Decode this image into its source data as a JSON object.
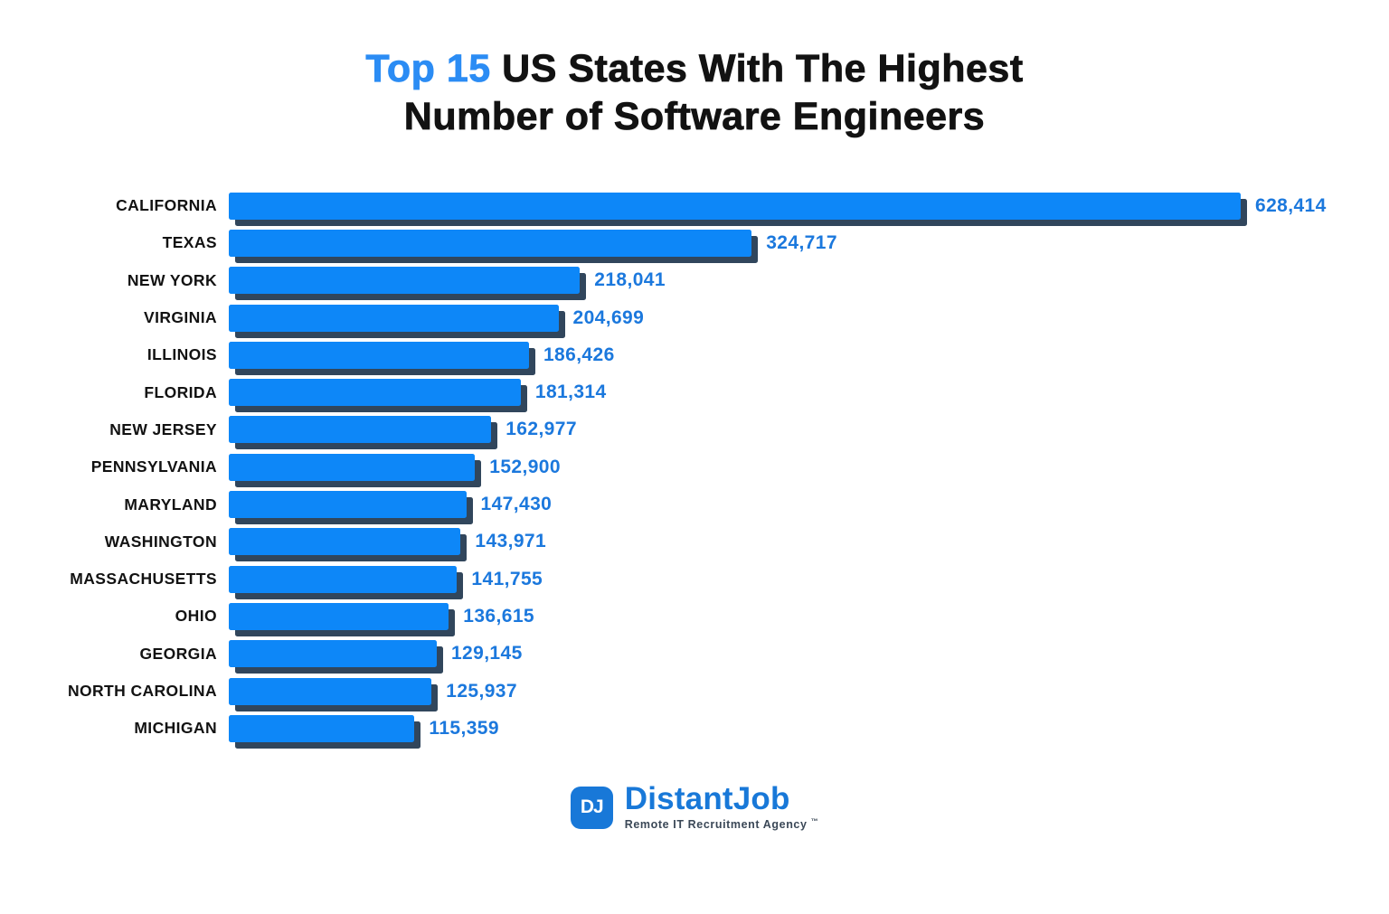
{
  "title": {
    "highlight": "Top 15",
    "rest_line1": " US States With The Highest",
    "line2": "Number of Software Engineers"
  },
  "chart_data": {
    "type": "bar",
    "orientation": "horizontal",
    "title": "Top 15 US States With The Highest Number of Software Engineers",
    "xlabel": "",
    "ylabel": "",
    "xlim": [
      0,
      628414
    ],
    "grid": false,
    "legend": false,
    "categories": [
      "CALIFORNIA",
      "TEXAS",
      "NEW YORK",
      "VIRGINIA",
      "ILLINOIS",
      "FLORIDA",
      "NEW JERSEY",
      "PENNSYLVANIA",
      "MARYLAND",
      "WASHINGTON",
      "MASSACHUSETTS",
      "OHIO",
      "GEORGIA",
      "NORTH CAROLINA",
      "MICHIGAN"
    ],
    "values": [
      628414,
      324717,
      218041,
      204699,
      186426,
      181314,
      162977,
      152900,
      147430,
      143971,
      141755,
      136615,
      129145,
      125937,
      115359
    ],
    "value_labels": [
      "628,414",
      "324,717",
      "218,041",
      "204,699",
      "186,426",
      "181,314",
      "162,977",
      "152,900",
      "147,430",
      "143,971",
      "141,755",
      "136,615",
      "129,145",
      "125,937",
      "115,359"
    ],
    "bar_color": "#0d87f8",
    "bar_shadow_color": "#31465c",
    "value_label_color": "#1b78dd",
    "category_label_color": "#121212"
  },
  "colors": {
    "title_highlight_blue": "#2b8cf4",
    "title_black": "#121212",
    "logo_blue": "#1878d8",
    "tagline_gray": "#3b4857",
    "background": "#ffffff"
  },
  "logo": {
    "monogram": "DJ",
    "name": "DistantJob",
    "tagline": "Remote IT Recruitment Agency",
    "trademark": "™"
  }
}
